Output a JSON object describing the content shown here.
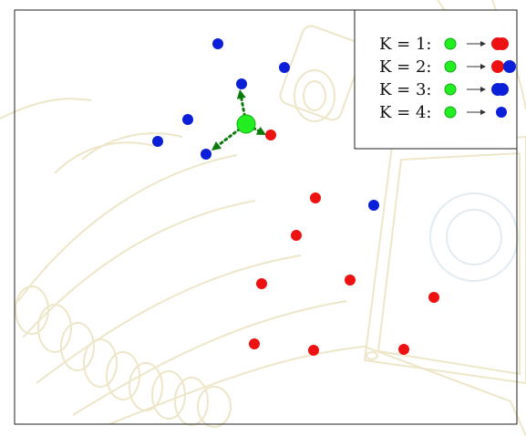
{
  "legend": {
    "rows": [
      {
        "label": "K = 1:",
        "neighbors": [
          "red",
          "red"
        ]
      },
      {
        "label": "K = 2:",
        "neighbors": [
          "red",
          "blue"
        ]
      },
      {
        "label": "K = 3:",
        "neighbors": [
          "blue",
          "blue"
        ]
      },
      {
        "label": "K = 4:",
        "neighbors": [
          "blue"
        ]
      }
    ]
  },
  "colors": {
    "query": "#22ee22",
    "query_outline": "#11aa11",
    "red": "#ee1111",
    "blue": "#0b1fd8",
    "arrow": "#0a7a0a",
    "background_drawing": "#ede6c8",
    "frame": "#222222"
  },
  "scene": {
    "background_icon": "faint-robot-arm-and-machine-sketch",
    "query_point_icon": "green-query-circle"
  }
}
